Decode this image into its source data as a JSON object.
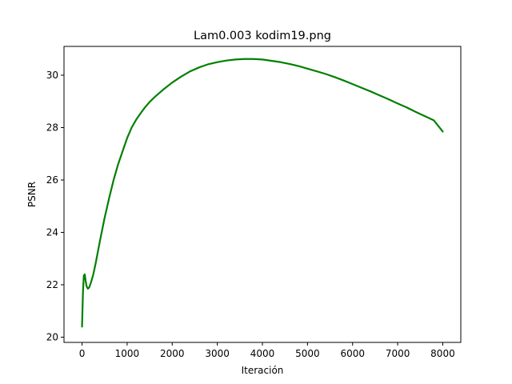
{
  "chart_data": {
    "type": "line",
    "title": "Lam0.003 kodim19.png",
    "xlabel": "Iteración",
    "ylabel": "PSNR",
    "xlim": [
      -400,
      8400
    ],
    "ylim": [
      19.8,
      31.1
    ],
    "xticks": [
      0,
      1000,
      2000,
      3000,
      4000,
      5000,
      6000,
      7000,
      8000
    ],
    "yticks": [
      20,
      22,
      24,
      26,
      28,
      30
    ],
    "grid": false,
    "series": [
      {
        "color": "#008000",
        "x": [
          0,
          20,
          40,
          60,
          80,
          100,
          130,
          160,
          200,
          250,
          300,
          400,
          500,
          600,
          700,
          800,
          900,
          1000,
          1100,
          1200,
          1300,
          1400,
          1500,
          1600,
          1700,
          1800,
          2000,
          2200,
          2400,
          2600,
          2800,
          3000,
          3200,
          3400,
          3600,
          3800,
          4000,
          4200,
          4400,
          4600,
          4800,
          5000,
          5200,
          5400,
          5600,
          5800,
          6000,
          6200,
          6400,
          6600,
          6800,
          7000,
          7200,
          7400,
          7600,
          7800,
          8000
        ],
        "y": [
          20.4,
          21.7,
          22.35,
          22.4,
          22.15,
          21.95,
          21.85,
          21.9,
          22.1,
          22.4,
          22.8,
          23.7,
          24.55,
          25.3,
          26.0,
          26.6,
          27.1,
          27.6,
          28.0,
          28.3,
          28.55,
          28.78,
          28.98,
          29.15,
          29.3,
          29.45,
          29.72,
          29.95,
          30.15,
          30.3,
          30.42,
          30.5,
          30.56,
          30.6,
          30.62,
          30.62,
          30.6,
          30.55,
          30.5,
          30.43,
          30.35,
          30.25,
          30.15,
          30.05,
          29.93,
          29.8,
          29.66,
          29.52,
          29.38,
          29.23,
          29.08,
          28.92,
          28.77,
          28.6,
          28.44,
          28.28,
          27.85
        ]
      }
    ]
  }
}
